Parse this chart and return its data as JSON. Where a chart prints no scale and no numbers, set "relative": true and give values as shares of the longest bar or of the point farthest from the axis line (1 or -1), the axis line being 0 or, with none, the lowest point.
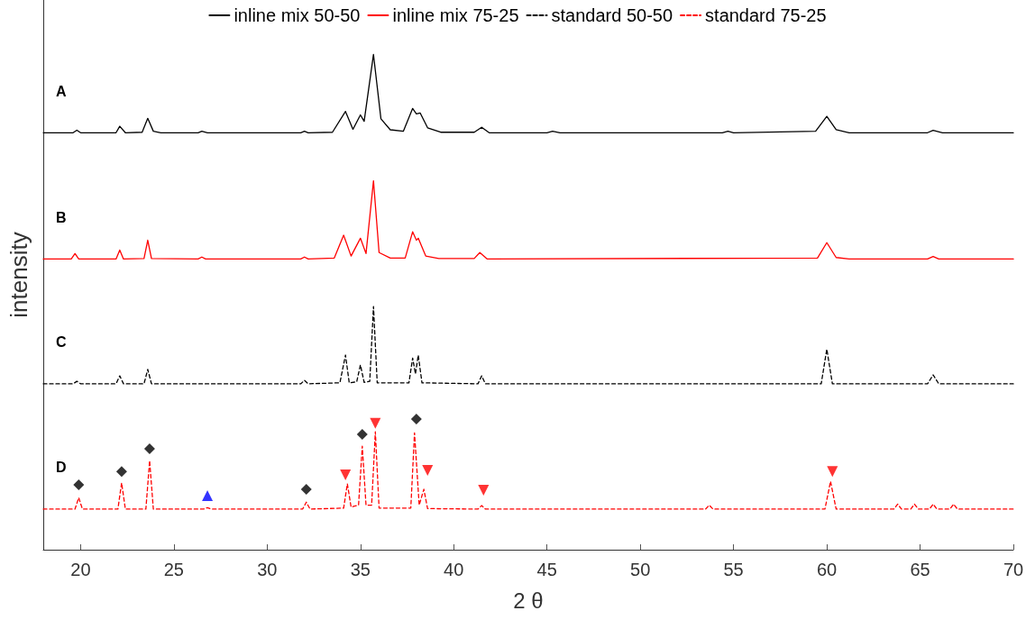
{
  "chart_data": {
    "type": "line",
    "relative": true,
    "xlabel": "2 θ",
    "ylabel": "intensity",
    "xlim": [
      18,
      70
    ],
    "xticks": [
      20,
      25,
      30,
      35,
      40,
      45,
      50,
      55,
      60,
      65,
      70
    ],
    "legend": "top",
    "grid": false,
    "tick_labels": "x",
    "annotations": [
      "A",
      "B",
      "C",
      "D"
    ],
    "series": [
      {
        "name": "inline mix 50-50",
        "color": "#000000",
        "line_style": "solid",
        "x": [
          18,
          19.6,
          19.8,
          20.0,
          21.9,
          22.1,
          22.4,
          23.3,
          23.6,
          23.9,
          24.3,
          26.3,
          26.5,
          26.8,
          31.8,
          32.0,
          32.2,
          33.5,
          34.2,
          34.6,
          35.0,
          35.2,
          35.7,
          36.1,
          36.6,
          37.3,
          37.8,
          38.0,
          38.2,
          38.6,
          39.3,
          41.1,
          41.5,
          41.9,
          45.0,
          45.3,
          45.7,
          54.4,
          54.7,
          55.0,
          59.4,
          60.0,
          60.5,
          61.2,
          65.4,
          65.7,
          66.2,
          70
        ],
        "values": [
          0.842,
          0.842,
          0.847,
          0.842,
          0.842,
          0.855,
          0.842,
          0.843,
          0.871,
          0.845,
          0.842,
          0.842,
          0.845,
          0.842,
          0.842,
          0.845,
          0.842,
          0.843,
          0.885,
          0.849,
          0.878,
          0.865,
          1.0,
          0.87,
          0.848,
          0.845,
          0.891,
          0.88,
          0.882,
          0.852,
          0.843,
          0.843,
          0.853,
          0.842,
          0.842,
          0.845,
          0.842,
          0.842,
          0.845,
          0.842,
          0.845,
          0.875,
          0.848,
          0.842,
          0.842,
          0.847,
          0.842,
          0.842
        ]
      },
      {
        "name": "inline mix 75-25",
        "color": "#ff0000",
        "line_style": "solid",
        "x": [
          18,
          19.5,
          19.7,
          19.9,
          21.9,
          22.1,
          22.3,
          23.4,
          23.6,
          23.8,
          26.3,
          26.5,
          26.7,
          31.8,
          32.0,
          32.2,
          33.6,
          34.1,
          34.5,
          35.0,
          35.3,
          35.7,
          36.0,
          36.6,
          37.4,
          37.8,
          38.0,
          38.1,
          38.5,
          39.2,
          41.1,
          41.4,
          41.8,
          59.5,
          60.0,
          60.5,
          61.2,
          65.4,
          65.7,
          66.0,
          70
        ],
        "values": [
          0.587,
          0.587,
          0.598,
          0.587,
          0.587,
          0.605,
          0.587,
          0.588,
          0.625,
          0.588,
          0.587,
          0.591,
          0.587,
          0.587,
          0.591,
          0.587,
          0.589,
          0.635,
          0.593,
          0.629,
          0.598,
          0.745,
          0.6,
          0.589,
          0.589,
          0.642,
          0.625,
          0.629,
          0.593,
          0.588,
          0.588,
          0.6,
          0.587,
          0.589,
          0.62,
          0.59,
          0.587,
          0.587,
          0.592,
          0.587,
          0.587
        ]
      },
      {
        "name": "standard 50-50",
        "color": "#000000",
        "line_style": "dashed",
        "x": [
          18,
          19.6,
          19.8,
          20.0,
          21.9,
          22.1,
          22.3,
          23.4,
          23.6,
          23.8,
          31.8,
          32.0,
          32.2,
          33.9,
          34.2,
          34.4,
          34.8,
          35.0,
          35.2,
          35.5,
          35.7,
          35.9,
          37.6,
          37.8,
          37.95,
          38.1,
          38.3,
          41.3,
          41.5,
          41.7,
          59.7,
          60.0,
          60.3,
          65.4,
          65.7,
          66.0,
          70
        ],
        "values": [
          0.335,
          0.335,
          0.34,
          0.335,
          0.335,
          0.351,
          0.335,
          0.335,
          0.364,
          0.335,
          0.335,
          0.342,
          0.335,
          0.337,
          0.393,
          0.337,
          0.339,
          0.373,
          0.338,
          0.34,
          0.491,
          0.337,
          0.337,
          0.387,
          0.355,
          0.393,
          0.337,
          0.335,
          0.351,
          0.335,
          0.335,
          0.405,
          0.335,
          0.335,
          0.353,
          0.335,
          0.335
        ]
      },
      {
        "name": "standard 75-25",
        "color": "#ff0000",
        "line_style": "dashed",
        "x": [
          18,
          19.7,
          19.9,
          20.1,
          22.0,
          22.2,
          22.4,
          23.5,
          23.7,
          23.9,
          26.6,
          26.8,
          27.0,
          31.9,
          32.1,
          32.3,
          34.1,
          34.3,
          34.5,
          34.9,
          35.1,
          35.3,
          35.6,
          35.8,
          36.0,
          37.7,
          37.9,
          38.15,
          38.4,
          38.6,
          41.3,
          41.5,
          41.7,
          53.5,
          53.7,
          53.9,
          59.9,
          60.2,
          60.5,
          63.6,
          63.8,
          64.0,
          64.5,
          64.7,
          64.9,
          65.5,
          65.7,
          65.9,
          66.6,
          66.8,
          67.0,
          70
        ],
        "values": [
          0.082,
          0.082,
          0.105,
          0.082,
          0.082,
          0.135,
          0.082,
          0.082,
          0.18,
          0.082,
          0.082,
          0.085,
          0.082,
          0.082,
          0.096,
          0.082,
          0.084,
          0.133,
          0.086,
          0.09,
          0.209,
          0.09,
          0.09,
          0.238,
          0.084,
          0.084,
          0.236,
          0.09,
          0.122,
          0.083,
          0.082,
          0.089,
          0.082,
          0.082,
          0.09,
          0.082,
          0.082,
          0.138,
          0.082,
          0.082,
          0.092,
          0.082,
          0.082,
          0.092,
          0.082,
          0.082,
          0.092,
          0.082,
          0.082,
          0.092,
          0.082,
          0.082
        ]
      },
      {
        "type": "scatter",
        "marker": "diamond",
        "color": "#000000",
        "x": [
          19.9,
          22.2,
          23.7,
          32.1,
          35.1,
          38.0
        ],
        "values": [
          0.131,
          0.158,
          0.204,
          0.122,
          0.233,
          0.264
        ]
      },
      {
        "type": "scatter",
        "marker": "triangle-down",
        "color": "#ff0000",
        "x": [
          34.2,
          35.8,
          38.6,
          41.6,
          60.3
        ],
        "values": [
          0.151,
          0.255,
          0.16,
          0.12,
          0.158
        ]
      },
      {
        "type": "scatter",
        "marker": "triangle",
        "color": "#0000ff",
        "x": [
          26.8
        ],
        "values": [
          0.109
        ]
      }
    ]
  }
}
